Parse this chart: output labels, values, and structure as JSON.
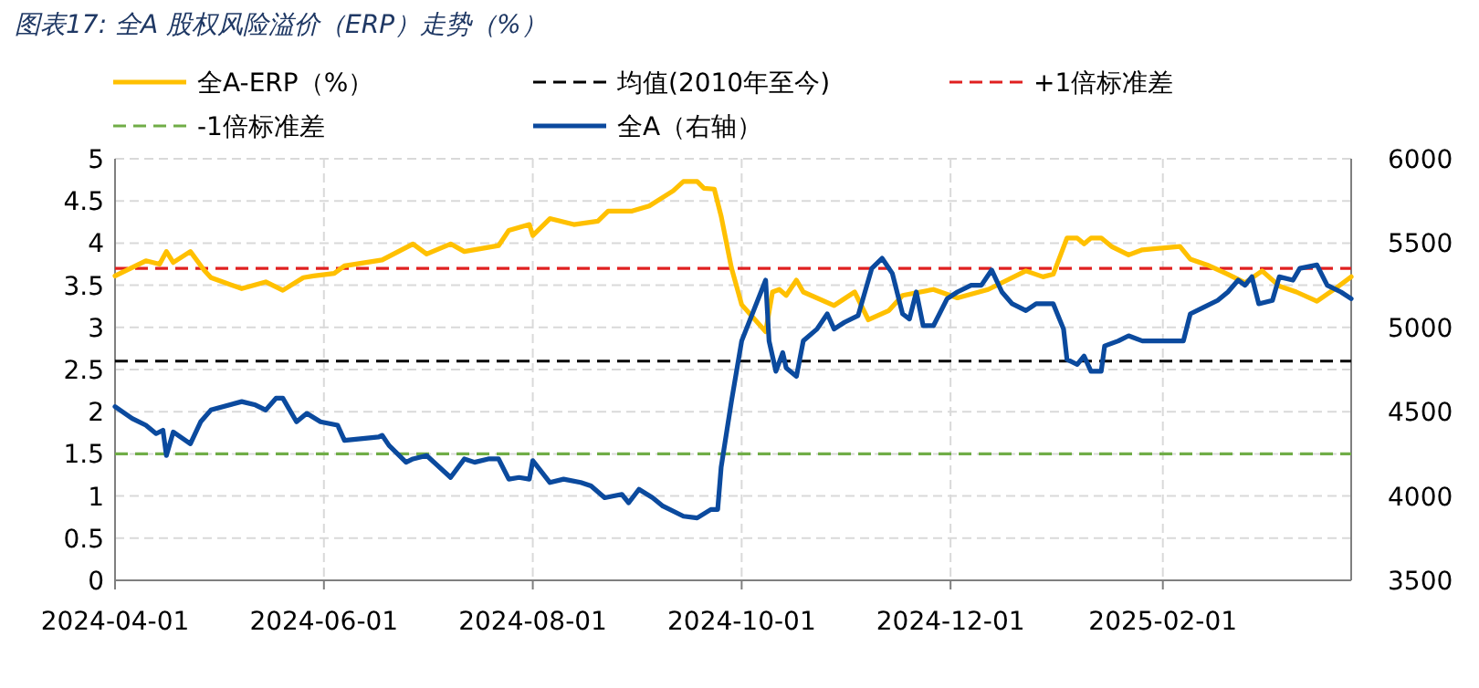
{
  "chart_data": {
    "type": "line",
    "title": "图表17:  全A 股权风险溢价（ERP）走势（%）",
    "xlim": [
      "2024-04-01",
      "2025-03-28"
    ],
    "xticks": [
      "2024-04-01",
      "2024-06-01",
      "2024-08-01",
      "2024-10-01",
      "2024-12-01",
      "2025-02-01"
    ],
    "ylim": [
      0,
      5
    ],
    "yticks": [
      0,
      0.5,
      1,
      1.5,
      2,
      2.5,
      3,
      3.5,
      4,
      4.5,
      5
    ],
    "y2lim": [
      3500,
      6000
    ],
    "y2ticks": [
      3500,
      4000,
      4500,
      5000,
      5500,
      6000
    ],
    "grid": true,
    "legend": "top",
    "line_style": "solid",
    "series": [
      {
        "name": "全A-ERP（%）",
        "color": "#ffc000",
        "x": [
          "2024-04-01",
          "2024-04-10",
          "2024-04-14",
          "2024-04-16",
          "2024-04-18",
          "2024-04-23",
          "2024-04-27",
          "2024-04-29",
          "2024-05-08",
          "2024-05-15",
          "2024-05-20",
          "2024-05-26",
          "2024-05-29",
          "2024-06-04",
          "2024-06-07",
          "2024-06-18",
          "2024-06-27",
          "2024-07-01",
          "2024-07-08",
          "2024-07-12",
          "2024-07-22",
          "2024-07-25",
          "2024-07-31",
          "2024-08-01",
          "2024-08-06",
          "2024-08-13",
          "2024-08-20",
          "2024-08-23",
          "2024-08-30",
          "2024-09-04",
          "2024-09-11",
          "2024-09-14",
          "2024-09-18",
          "2024-09-20",
          "2024-09-23",
          "2024-09-25",
          "2024-09-28",
          "2024-10-01",
          "2024-10-08",
          "2024-10-10",
          "2024-10-12",
          "2024-10-14",
          "2024-10-17",
          "2024-10-19",
          "2024-10-28",
          "2024-11-03",
          "2024-11-07",
          "2024-11-13",
          "2024-11-17",
          "2024-11-26",
          "2024-12-03",
          "2024-12-12",
          "2024-12-23",
          "2024-12-28",
          "2024-12-31",
          "2025-01-04",
          "2025-01-07",
          "2025-01-09",
          "2025-01-11",
          "2025-01-14",
          "2025-01-17",
          "2025-01-22",
          "2025-01-26",
          "2025-02-06",
          "2025-02-09",
          "2025-02-14",
          "2025-02-20",
          "2025-02-25",
          "2025-03-02",
          "2025-03-07",
          "2025-03-12",
          "2025-03-18",
          "2025-03-23",
          "2025-03-28"
        ],
        "values": [
          3.61,
          3.79,
          3.75,
          3.9,
          3.77,
          3.9,
          3.68,
          3.59,
          3.46,
          3.54,
          3.44,
          3.59,
          3.61,
          3.64,
          3.73,
          3.8,
          3.99,
          3.87,
          3.99,
          3.9,
          3.97,
          4.15,
          4.22,
          4.09,
          4.29,
          4.22,
          4.26,
          4.38,
          4.38,
          4.44,
          4.62,
          4.73,
          4.73,
          4.65,
          4.64,
          4.32,
          3.71,
          3.27,
          2.95,
          3.42,
          3.45,
          3.38,
          3.56,
          3.42,
          3.26,
          3.42,
          3.09,
          3.2,
          3.38,
          3.45,
          3.35,
          3.45,
          3.67,
          3.6,
          3.63,
          4.06,
          4.06,
          3.99,
          4.06,
          4.06,
          3.96,
          3.86,
          3.92,
          3.96,
          3.81,
          3.74,
          3.63,
          3.53,
          3.67,
          3.49,
          3.42,
          3.31,
          3.45,
          3.6
        ]
      },
      {
        "name": "全A（右轴）",
        "color": "#0b4a9e",
        "axis": "y2",
        "x": [
          "2024-04-01",
          "2024-04-06",
          "2024-04-10",
          "2024-04-13",
          "2024-04-15",
          "2024-04-16",
          "2024-04-18",
          "2024-04-23",
          "2024-04-26",
          "2024-04-29",
          "2024-05-08",
          "2024-05-12",
          "2024-05-15",
          "2024-05-18",
          "2024-05-20",
          "2024-05-24",
          "2024-05-27",
          "2024-05-31",
          "2024-06-05",
          "2024-06-07",
          "2024-06-17",
          "2024-06-18",
          "2024-06-20",
          "2024-06-25",
          "2024-06-27",
          "2024-07-01",
          "2024-07-08",
          "2024-07-12",
          "2024-07-15",
          "2024-07-19",
          "2024-07-22",
          "2024-07-25",
          "2024-07-28",
          "2024-07-31",
          "2024-08-01",
          "2024-08-06",
          "2024-08-10",
          "2024-08-15",
          "2024-08-18",
          "2024-08-22",
          "2024-08-27",
          "2024-08-29",
          "2024-09-01",
          "2024-09-05",
          "2024-09-08",
          "2024-09-14",
          "2024-09-18",
          "2024-09-22",
          "2024-09-24",
          "2024-09-25",
          "2024-09-28",
          "2024-10-01",
          "2024-10-08",
          "2024-10-09",
          "2024-10-11",
          "2024-10-13",
          "2024-10-14",
          "2024-10-17",
          "2024-10-19",
          "2024-10-23",
          "2024-10-26",
          "2024-10-28",
          "2024-10-31",
          "2024-11-04",
          "2024-11-08",
          "2024-11-11",
          "2024-11-14",
          "2024-11-17",
          "2024-11-19",
          "2024-11-21",
          "2024-11-23",
          "2024-11-26",
          "2024-11-30",
          "2024-12-03",
          "2024-12-07",
          "2024-12-10",
          "2024-12-13",
          "2024-12-16",
          "2024-12-19",
          "2024-12-23",
          "2024-12-26",
          "2024-12-31",
          "2025-01-03",
          "2025-01-04",
          "2025-01-07",
          "2025-01-09",
          "2025-01-11",
          "2025-01-14",
          "2025-01-15",
          "2025-01-19",
          "2025-01-22",
          "2025-01-26",
          "2025-01-28",
          "2025-02-07",
          "2025-02-09",
          "2025-02-13",
          "2025-02-17",
          "2025-02-20",
          "2025-02-23",
          "2025-02-25",
          "2025-02-27",
          "2025-03-01",
          "2025-03-05",
          "2025-03-07",
          "2025-03-11",
          "2025-03-13",
          "2025-03-18",
          "2025-03-21",
          "2025-03-25",
          "2025-03-28"
        ],
        "values": [
          4530,
          4460,
          4420,
          4370,
          4390,
          4240,
          4380,
          4310,
          4440,
          4510,
          4560,
          4540,
          4510,
          4580,
          4580,
          4440,
          4490,
          4440,
          4420,
          4330,
          4350,
          4360,
          4300,
          4200,
          4220,
          4240,
          4110,
          4220,
          4200,
          4220,
          4220,
          4100,
          4110,
          4100,
          4210,
          4080,
          4100,
          4080,
          4060,
          3990,
          4010,
          3960,
          4040,
          3990,
          3940,
          3880,
          3870,
          3920,
          3920,
          4170,
          4560,
          4920,
          5280,
          4920,
          4740,
          4850,
          4760,
          4710,
          4920,
          4990,
          5080,
          4990,
          5030,
          5070,
          5350,
          5410,
          5320,
          5080,
          5050,
          5210,
          5010,
          5010,
          5170,
          5210,
          5250,
          5250,
          5340,
          5210,
          5140,
          5100,
          5140,
          5140,
          4990,
          4810,
          4780,
          4830,
          4740,
          4740,
          4890,
          4920,
          4950,
          4920,
          4920,
          4920,
          5080,
          5120,
          5160,
          5210,
          5280,
          5250,
          5300,
          5140,
          5160,
          5300,
          5280,
          5350,
          5370,
          5250,
          5210,
          5170
        ]
      }
    ],
    "ref_lines": [
      {
        "axis": "y",
        "value": 2.6,
        "label": "均值(2010年至今)",
        "color": "#000000",
        "line_style": "dashed"
      },
      {
        "axis": "y",
        "value": 3.7,
        "label": "+1倍标准差",
        "color": "#e02020",
        "line_style": "dashed"
      },
      {
        "axis": "y",
        "value": 1.5,
        "label": "-1倍标准差",
        "color": "#70ad47",
        "line_style": "dashed"
      }
    ]
  }
}
